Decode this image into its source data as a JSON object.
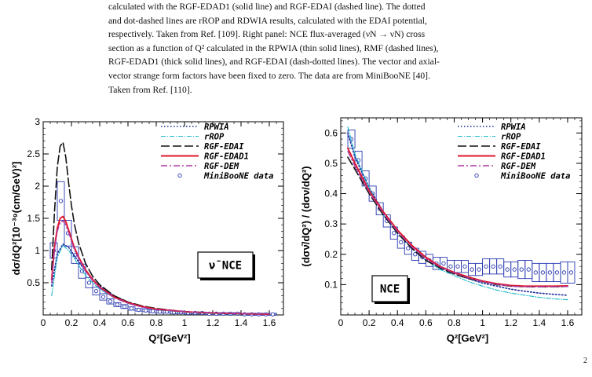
{
  "caption": {
    "lines": [
      "calculated with the RGF-EDAD1 (solid line) and RGF-EDAI (dashed line).  The dotted",
      "and dot-dashed lines are rROP and RDWIA results, calculated with the EDAI potential,",
      "respectively.  Taken from Ref. [109].  Right panel: NCE flux-averaged (νN → νN) cross",
      "section as a function of Q² calculated in the RPWIA (thin solid lines), RMF (dashed lines),",
      "RGF-EDAD1 (thick solid lines), and RGF-EDAI (dash-dotted lines).  The vector and axial-",
      "vector strange form factors have been fixed to zero.  The data are from MiniBooNE [40].",
      "Taken from Ref. [110]."
    ]
  },
  "page_number": "2",
  "colors": {
    "rpwia": "#1a2a9c",
    "rrop": "#19b7c8",
    "edai": "#111111",
    "edad1": "#e0162b",
    "dem": "#b03aa0",
    "data": "#2a3ab0"
  },
  "chart_data": [
    {
      "type": "line",
      "panel": "left",
      "xlabel": "Q²[GeV²]",
      "ylabel": "dσ/dQ²[10⁻³⁹(cm/GeV)²]",
      "xlim": [
        0,
        1.7
      ],
      "ylim": [
        0,
        3
      ],
      "xticks": [
        "0",
        "0.2",
        "0.4",
        "0.6",
        "0.8",
        "1",
        "1.2",
        "1.4",
        "1.6"
      ],
      "yticks": [
        "0.5",
        "1",
        "1.5",
        "2",
        "2.5",
        "3"
      ],
      "box_label": "ν̄ NCE",
      "legend_title_marker": "",
      "series": [
        {
          "name": "RPWIA",
          "style": "dotted",
          "color_key": "rpwia",
          "x": [
            0.06,
            0.1,
            0.14,
            0.18,
            0.22,
            0.26,
            0.3,
            0.35,
            0.4,
            0.5,
            0.6,
            0.7,
            0.8,
            1.0,
            1.2,
            1.4,
            1.6
          ],
          "y": [
            0.45,
            0.95,
            1.1,
            1.05,
            0.92,
            0.8,
            0.68,
            0.55,
            0.45,
            0.3,
            0.2,
            0.13,
            0.09,
            0.05,
            0.03,
            0.02,
            0.01
          ]
        },
        {
          "name": "rROP",
          "style": "dashdot-thin",
          "color_key": "rrop",
          "x": [
            0.06,
            0.1,
            0.14,
            0.18,
            0.22,
            0.26,
            0.3,
            0.35,
            0.4,
            0.5,
            0.6,
            0.7,
            0.8,
            1.0,
            1.2,
            1.4,
            1.6
          ],
          "y": [
            0.3,
            0.9,
            1.08,
            1.0,
            0.88,
            0.74,
            0.62,
            0.5,
            0.4,
            0.27,
            0.18,
            0.12,
            0.08,
            0.04,
            0.02,
            0.01,
            0.01
          ]
        },
        {
          "name": "RGF-EDAI",
          "style": "longdash",
          "color_key": "edai",
          "x": [
            0.06,
            0.08,
            0.1,
            0.12,
            0.14,
            0.16,
            0.18,
            0.2,
            0.22,
            0.25,
            0.3,
            0.35,
            0.4,
            0.5,
            0.6,
            0.7,
            0.8,
            1.0,
            1.2,
            1.4,
            1.6
          ],
          "y": [
            0.7,
            1.6,
            2.3,
            2.62,
            2.68,
            2.45,
            2.05,
            1.7,
            1.42,
            1.12,
            0.8,
            0.6,
            0.47,
            0.3,
            0.2,
            0.14,
            0.1,
            0.05,
            0.03,
            0.02,
            0.01
          ]
        },
        {
          "name": "RGF-EDAD1",
          "style": "solid",
          "color_key": "edad1",
          "x": [
            0.06,
            0.08,
            0.1,
            0.12,
            0.14,
            0.16,
            0.18,
            0.2,
            0.22,
            0.25,
            0.3,
            0.35,
            0.4,
            0.5,
            0.6,
            0.7,
            0.8,
            1.0,
            1.2,
            1.4,
            1.6
          ],
          "y": [
            0.55,
            1.05,
            1.35,
            1.5,
            1.53,
            1.45,
            1.32,
            1.18,
            1.05,
            0.9,
            0.7,
            0.55,
            0.43,
            0.28,
            0.19,
            0.13,
            0.09,
            0.05,
            0.03,
            0.02,
            0.01
          ]
        },
        {
          "name": "RGF-DEM",
          "style": "dashdot",
          "color_key": "dem",
          "x": [
            0.06,
            0.08,
            0.1,
            0.12,
            0.14,
            0.16,
            0.18,
            0.2,
            0.22,
            0.25,
            0.3,
            0.35,
            0.4,
            0.5,
            0.6,
            0.7,
            0.8,
            1.0,
            1.2,
            1.4,
            1.6
          ],
          "y": [
            0.5,
            1.0,
            1.3,
            1.43,
            1.46,
            1.4,
            1.28,
            1.15,
            1.02,
            0.88,
            0.68,
            0.53,
            0.42,
            0.27,
            0.18,
            0.12,
            0.08,
            0.05,
            0.03,
            0.02,
            0.01
          ]
        }
      ],
      "data_points": {
        "name": "MiniBooNE data",
        "x": [
          0.075,
          0.125,
          0.175,
          0.225,
          0.275,
          0.325,
          0.375,
          0.425,
          0.475,
          0.525,
          0.575,
          0.625,
          0.675,
          0.725,
          0.775,
          0.825,
          0.875,
          0.925,
          0.975,
          1.025,
          1.075,
          1.125,
          1.175,
          1.225,
          1.275,
          1.325,
          1.375,
          1.425,
          1.475,
          1.525,
          1.575,
          1.625
        ],
        "y": [
          1.0,
          1.77,
          1.27,
          0.93,
          0.68,
          0.5,
          0.37,
          0.28,
          0.21,
          0.16,
          0.13,
          0.1,
          0.08,
          0.07,
          0.06,
          0.05,
          0.05,
          0.04,
          0.04,
          0.03,
          0.03,
          0.03,
          0.02,
          0.02,
          0.02,
          0.02,
          0.02,
          0.01,
          0.01,
          0.01,
          0.01,
          0.01
        ],
        "err": [
          0.12,
          0.3,
          0.2,
          0.13,
          0.11,
          0.08,
          0.06,
          0.05,
          0.04,
          0.03,
          0.03,
          0.025,
          0.02,
          0.02,
          0.02,
          0.02,
          0.02,
          0.02,
          0.02,
          0.015,
          0.015,
          0.015,
          0.015,
          0.015,
          0.015,
          0.015,
          0.015,
          0.015,
          0.015,
          0.015,
          0.015,
          0.015
        ],
        "bin_half_width": 0.025
      }
    },
    {
      "type": "line",
      "panel": "right",
      "xlabel": "Q²[GeV²]",
      "ylabel": "(dσν̄/dQ²) / (dσν/dQ²)",
      "xlim": [
        0,
        1.7
      ],
      "ylim": [
        0,
        0.65
      ],
      "xticks": [
        "0",
        "0.2",
        "0.4",
        "0.6",
        "0.8",
        "1",
        "1.2",
        "1.4",
        "1.6"
      ],
      "yticks": [
        "0.1",
        "0.2",
        "0.3",
        "0.4",
        "0.5",
        "0.6"
      ],
      "box_label": "NCE",
      "series": [
        {
          "name": "RPWIA",
          "style": "dotted",
          "color_key": "rpwia",
          "x": [
            0.05,
            0.1,
            0.2,
            0.3,
            0.4,
            0.5,
            0.6,
            0.7,
            0.8,
            0.9,
            1.0,
            1.1,
            1.2,
            1.3,
            1.4,
            1.5,
            1.6
          ],
          "y": [
            0.6,
            0.52,
            0.42,
            0.34,
            0.28,
            0.23,
            0.19,
            0.16,
            0.14,
            0.12,
            0.105,
            0.095,
            0.085,
            0.078,
            0.072,
            0.068,
            0.065
          ]
        },
        {
          "name": "rROP",
          "style": "dashdot-thin",
          "color_key": "rrop",
          "x": [
            0.05,
            0.1,
            0.2,
            0.3,
            0.4,
            0.5,
            0.6,
            0.7,
            0.8,
            0.9,
            1.0,
            1.1,
            1.2,
            1.3,
            1.4,
            1.5,
            1.6
          ],
          "y": [
            0.62,
            0.53,
            0.42,
            0.33,
            0.27,
            0.22,
            0.18,
            0.15,
            0.13,
            0.11,
            0.095,
            0.082,
            0.072,
            0.065,
            0.058,
            0.053,
            0.05
          ]
        },
        {
          "name": "RGF-EDAI",
          "style": "longdash",
          "color_key": "edai",
          "x": [
            0.05,
            0.1,
            0.2,
            0.3,
            0.4,
            0.5,
            0.6,
            0.7,
            0.8,
            0.9,
            1.0,
            1.1,
            1.2,
            1.3,
            1.4,
            1.5,
            1.6
          ],
          "y": [
            0.52,
            0.48,
            0.4,
            0.33,
            0.27,
            0.22,
            0.18,
            0.155,
            0.135,
            0.12,
            0.11,
            0.1,
            0.095,
            0.093,
            0.093,
            0.093,
            0.094
          ]
        },
        {
          "name": "RGF-EDAD1",
          "style": "solid",
          "color_key": "edad1",
          "x": [
            0.05,
            0.1,
            0.2,
            0.3,
            0.4,
            0.5,
            0.6,
            0.7,
            0.8,
            0.9,
            1.0,
            1.1,
            1.2,
            1.3,
            1.4,
            1.5,
            1.6
          ],
          "y": [
            0.55,
            0.5,
            0.41,
            0.34,
            0.28,
            0.23,
            0.19,
            0.16,
            0.14,
            0.125,
            0.112,
            0.103,
            0.097,
            0.095,
            0.095,
            0.095,
            0.096
          ]
        },
        {
          "name": "RGF-DEM",
          "style": "dashdot",
          "color_key": "dem",
          "x": [
            0.05,
            0.1,
            0.2,
            0.3,
            0.4,
            0.5,
            0.6,
            0.7,
            0.8,
            0.9,
            1.0,
            1.1,
            1.2,
            1.3,
            1.4,
            1.5,
            1.6
          ],
          "y": [
            0.54,
            0.49,
            0.405,
            0.335,
            0.275,
            0.225,
            0.185,
            0.158,
            0.138,
            0.122,
            0.11,
            0.101,
            0.095,
            0.093,
            0.093,
            0.093,
            0.094
          ]
        }
      ],
      "data_points": {
        "name": "MiniBooNE data",
        "x": [
          0.075,
          0.125,
          0.175,
          0.225,
          0.275,
          0.325,
          0.375,
          0.425,
          0.475,
          0.525,
          0.575,
          0.625,
          0.675,
          0.725,
          0.775,
          0.825,
          0.875,
          0.925,
          0.975,
          1.025,
          1.075,
          1.125,
          1.175,
          1.225,
          1.275,
          1.325,
          1.375,
          1.425,
          1.475,
          1.525,
          1.575,
          1.625
        ],
        "y": [
          0.58,
          0.51,
          0.45,
          0.4,
          0.35,
          0.31,
          0.27,
          0.24,
          0.22,
          0.2,
          0.19,
          0.18,
          0.17,
          0.17,
          0.16,
          0.16,
          0.16,
          0.15,
          0.15,
          0.16,
          0.16,
          0.16,
          0.15,
          0.15,
          0.15,
          0.15,
          0.14,
          0.14,
          0.14,
          0.14,
          0.14,
          0.14
        ],
        "err": [
          0.03,
          0.03,
          0.025,
          0.025,
          0.02,
          0.02,
          0.02,
          0.02,
          0.02,
          0.02,
          0.02,
          0.02,
          0.02,
          0.02,
          0.02,
          0.02,
          0.02,
          0.02,
          0.02,
          0.025,
          0.025,
          0.025,
          0.025,
          0.025,
          0.03,
          0.03,
          0.03,
          0.03,
          0.03,
          0.03,
          0.035,
          0.035
        ],
        "bin_half_width": 0.025
      }
    }
  ]
}
